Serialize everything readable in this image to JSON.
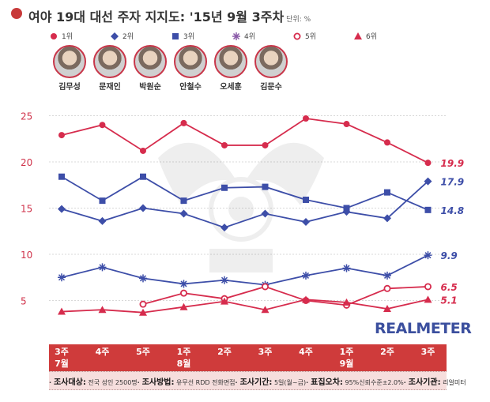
{
  "title": "여야 19대 대선 주자 지지도: '15년 9월 3주차",
  "unit": "단위: %",
  "legend": [
    {
      "label": "1위",
      "color": "#d62c4d",
      "marker": "circle-filled"
    },
    {
      "label": "2위",
      "color": "#3d4ea8",
      "marker": "diamond"
    },
    {
      "label": "3위",
      "color": "#3d4ea8",
      "marker": "square"
    },
    {
      "label": "4위",
      "color": "#8a5aa8",
      "marker": "asterisk"
    },
    {
      "label": "5위",
      "color": "#d62c4d",
      "marker": "circle-open"
    },
    {
      "label": "6위",
      "color": "#d62c4d",
      "marker": "triangle"
    }
  ],
  "candidates": [
    "김무성",
    "문재인",
    "박원순",
    "안철수",
    "오세훈",
    "김문수"
  ],
  "watermark": "REALMETER",
  "footer": {
    "items": [
      {
        "label": "조사대상:",
        "value": "전국 성인 2500명"
      },
      {
        "label": "조사방법:",
        "value": "유무선 RDD 전화면접"
      },
      {
        "label": "조사기간:",
        "value": "5일(월~금)"
      },
      {
        "label": "표집오차:",
        "value": "95%신뢰수준±2.0%"
      },
      {
        "label": "조사기관:",
        "value": "리얼미터"
      }
    ]
  },
  "chart_data": {
    "type": "line",
    "title": "여야 19대 대선 주자 지지도: '15년 9월 3주차",
    "categories": [
      [
        "3주",
        "7월"
      ],
      [
        "4주",
        ""
      ],
      [
        "5주",
        ""
      ],
      [
        "1주",
        "8월"
      ],
      [
        "2주",
        ""
      ],
      [
        "3주",
        ""
      ],
      [
        "4주",
        ""
      ],
      [
        "1주",
        "9월"
      ],
      [
        "2주",
        ""
      ],
      [
        "3주",
        ""
      ]
    ],
    "ylim": [
      0,
      27
    ],
    "yticks": [
      5,
      10,
      15,
      20,
      25
    ],
    "grid": true,
    "legend_position": "top",
    "series": [
      {
        "name": "1위",
        "color": "#d62c4d",
        "marker": "circle-filled",
        "values": [
          22.9,
          24.0,
          21.2,
          24.2,
          21.8,
          21.8,
          24.7,
          24.1,
          22.1,
          19.9
        ],
        "end_label": "19.9"
      },
      {
        "name": "2위",
        "color": "#3d4ea8",
        "marker": "diamond",
        "values": [
          14.9,
          13.6,
          15.0,
          14.4,
          12.9,
          14.4,
          13.5,
          14.6,
          13.9,
          17.9
        ],
        "end_label": "17.9"
      },
      {
        "name": "3위",
        "color": "#3d4ea8",
        "marker": "square",
        "values": [
          18.4,
          15.8,
          18.4,
          15.8,
          17.2,
          17.3,
          15.9,
          15.0,
          16.7,
          14.8
        ],
        "end_label": "14.8"
      },
      {
        "name": "4위",
        "color": "#3d4ea8",
        "marker": "asterisk",
        "values": [
          7.5,
          8.6,
          7.4,
          6.8,
          7.2,
          6.7,
          7.7,
          8.5,
          7.7,
          9.9
        ],
        "end_label": "9.9"
      },
      {
        "name": "5위",
        "color": "#d62c4d",
        "marker": "circle-open",
        "values": [
          null,
          null,
          4.6,
          5.8,
          5.2,
          6.5,
          5.0,
          4.5,
          6.3,
          6.5
        ],
        "end_label": "6.5"
      },
      {
        "name": "6위",
        "color": "#d62c4d",
        "marker": "triangle",
        "values": [
          3.8,
          4.0,
          3.7,
          4.3,
          4.9,
          4.0,
          5.1,
          4.8,
          4.1,
          5.1
        ],
        "end_label": "5.1"
      }
    ]
  }
}
